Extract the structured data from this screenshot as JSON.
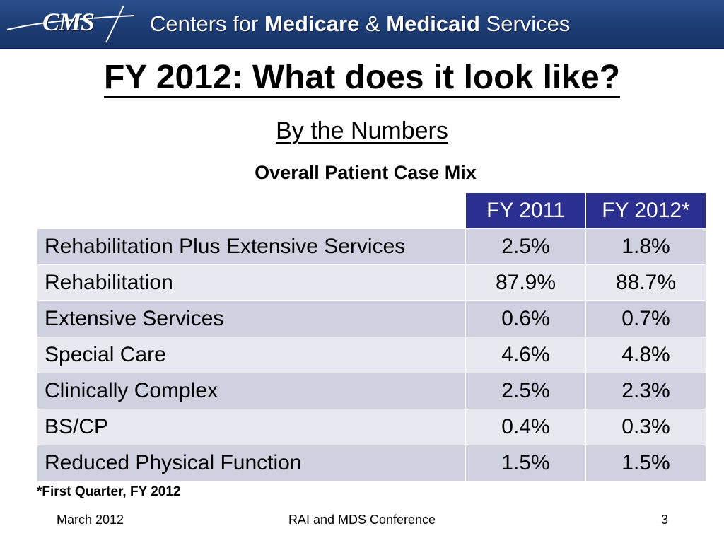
{
  "banner": {
    "logo_text": "CMS",
    "org_name_part1": "Centers for ",
    "org_name_part2": "Medicare",
    "org_name_part3": " & ",
    "org_name_part4": "Medicaid",
    "org_name_part5": " Services",
    "colors": {
      "background": "#1f3f78",
      "text": "#ffffff"
    }
  },
  "slide": {
    "title": "FY 2012: What does it look like?",
    "subtitle": "By the Numbers",
    "table_caption": "Overall Patient Case Mix"
  },
  "table": {
    "headers": [
      "",
      "FY 2011",
      "FY 2012*"
    ],
    "rows": [
      [
        "Rehabilitation Plus Extensive Services",
        "2.5%",
        "1.8%"
      ],
      [
        "Rehabilitation",
        "87.9%",
        "88.7%"
      ],
      [
        "Extensive Services",
        "0.6%",
        "0.7%"
      ],
      [
        "Special Care",
        "4.6%",
        "4.8%"
      ],
      [
        "Clinically Complex",
        "2.5%",
        "2.3%"
      ],
      [
        "BS/CP",
        "0.4%",
        "0.3%"
      ],
      [
        "Reduced Physical Function",
        "1.5%",
        "1.5%"
      ]
    ],
    "colors": {
      "header_bg": "#2b2f8f",
      "row_odd": "#cfd0e0",
      "row_even": "#e8e8f0"
    }
  },
  "footnote": "*First Quarter, FY 2012",
  "footer": {
    "date": "March 2012",
    "event": "RAI and MDS Conference",
    "page_number": "3"
  }
}
